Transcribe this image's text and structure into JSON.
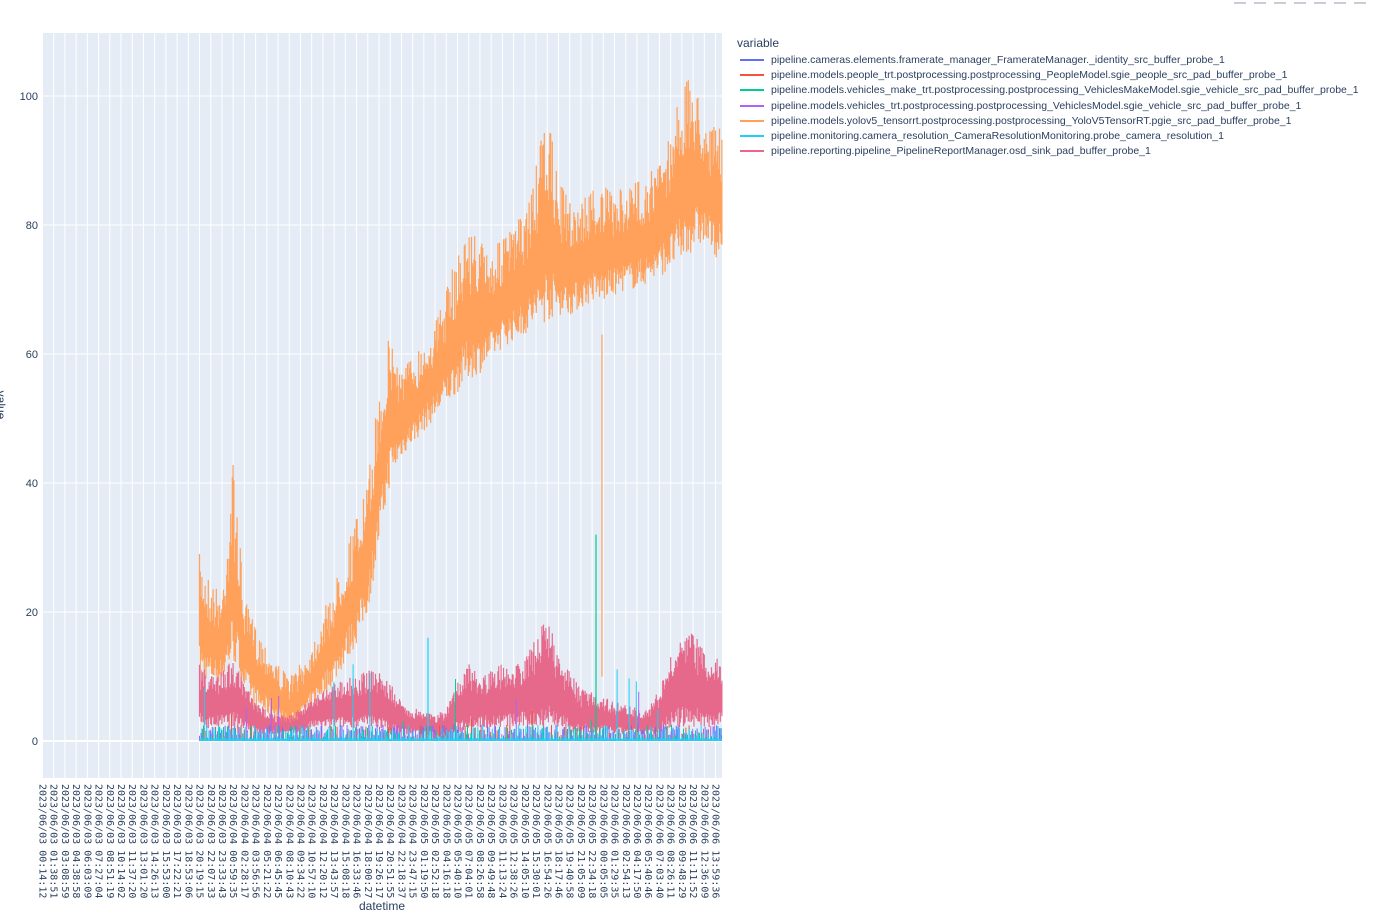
{
  "chart_data": {
    "type": "line",
    "title": "",
    "xlabel": "datetime",
    "ylabel": "value",
    "ylim": [
      -6,
      110
    ],
    "yticks": [
      0,
      20,
      40,
      60,
      80,
      100
    ],
    "grid": true,
    "legend_position": "right",
    "legend_title": "variable",
    "x_tick_labels": [
      "2023/06/03 00:14:12",
      "2023/06/03 01:38:51",
      "2023/06/03 03:08:59",
      "2023/06/03 04:38:58",
      "2023/06/03 06:03:09",
      "2023/06/03 07:27:04",
      "2023/06/03 08:51:19",
      "2023/06/03 10:14:02",
      "2023/06/03 11:37:20",
      "2023/06/03 13:01:20",
      "2023/06/03 14:26:13",
      "2023/06/03 15:53:00",
      "2023/06/03 17:22:21",
      "2023/06/03 18:53:06",
      "2023/06/03 20:19:15",
      "2023/06/03 22:07:33",
      "2023/06/03 23:33:43",
      "2023/06/04 00:59:35",
      "2023/06/04 02:28:17",
      "2023/06/04 03:56:56",
      "2023/06/04 05:21:22",
      "2023/06/04 06:45:45",
      "2023/06/04 08:10:43",
      "2023/06/04 09:34:22",
      "2023/06/04 10:57:10",
      "2023/06/04 12:20:12",
      "2023/06/04 13:43:57",
      "2023/06/04 15:08:18",
      "2023/06/04 16:33:46",
      "2023/06/04 18:00:27",
      "2023/06/04 19:26:17",
      "2023/06/04 20:51:55",
      "2023/06/04 22:18:37",
      "2023/06/04 23:47:15",
      "2023/06/05 01:19:50",
      "2023/06/05 02:52:18",
      "2023/06/05 04:16:18",
      "2023/06/05 05:40:10",
      "2023/06/05 07:04:01",
      "2023/06/05 08:26:58",
      "2023/06/05 09:49:48",
      "2023/06/05 11:13:24",
      "2023/06/05 12:38:26",
      "2023/06/05 14:05:10",
      "2023/06/05 15:30:01",
      "2023/06/05 16:54:26",
      "2023/06/05 18:17:46",
      "2023/06/05 19:40:58",
      "2023/06/05 21:05:09",
      "2023/06/05 22:34:18",
      "2023/06/06 00:05:05",
      "2023/06/06 01:29:35",
      "2023/06/06 02:54:13",
      "2023/06/06 04:17:50",
      "2023/06/06 05:40:46",
      "2023/06/06 07:03:40",
      "2023/06/06 08:26:11",
      "2023/06/06 09:48:29",
      "2023/06/06 11:11:52",
      "2023/06/06 12:36:09",
      "2023/06/06 13:59:36"
    ],
    "data_start_tick_index": 14,
    "series": [
      {
        "name": "pipeline.cameras.elements.framerate_manager_FramerateManager._identity_src_buffer_probe_1",
        "color": "#636efa",
        "approx_range": [
          0,
          3
        ]
      },
      {
        "name": "pipeline.models.people_trt.postprocessing.postprocessing_PeopleModel.sgie_people_src_pad_buffer_probe_1",
        "color": "#ef553b",
        "approx_range": [
          0,
          5
        ]
      },
      {
        "name": "pipeline.models.vehicles_make_trt.postprocessing.postprocessing_VehiclesMakeModel.sgie_vehicle_src_pad_buffer_probe_1",
        "color": "#00cc96",
        "approx_range": [
          0,
          32
        ]
      },
      {
        "name": "pipeline.models.vehicles_trt.postprocessing.postprocessing_VehiclesModel.sgie_vehicle_src_pad_buffer_probe_1",
        "color": "#ab63fa",
        "approx_range": [
          0,
          10
        ]
      },
      {
        "name": "pipeline.models.yolov5_tensorrt.postprocessing.postprocessing_YoloV5TensorRT.pgie_src_pad_buffer_probe_1",
        "color": "#ffa15a",
        "envelope_x_tick": [
          14,
          15,
          16,
          17,
          18,
          19,
          20,
          21,
          22,
          23,
          24,
          25,
          26,
          27,
          28,
          29,
          30,
          31,
          32,
          33,
          34,
          35,
          36,
          37,
          38,
          39,
          40,
          41,
          42,
          43,
          44,
          45,
          46,
          47,
          48,
          49,
          50,
          51,
          52,
          53,
          54,
          55,
          56,
          57,
          58,
          59,
          60
        ],
        "envelope_low": [
          10,
          9,
          9,
          12,
          8,
          5,
          4,
          3,
          2,
          3,
          5,
          7,
          9,
          12,
          15,
          20,
          30,
          40,
          44,
          46,
          48,
          50,
          52,
          54,
          56,
          57,
          59,
          61,
          62,
          63,
          64,
          65,
          66,
          66,
          67,
          68,
          68,
          69,
          70,
          70,
          71,
          72,
          73,
          74,
          76,
          77,
          75
        ],
        "envelope_high": [
          29,
          25,
          23,
          44,
          22,
          18,
          15,
          12,
          10,
          12,
          15,
          20,
          24,
          30,
          35,
          40,
          55,
          64,
          58,
          60,
          62,
          65,
          70,
          76,
          80,
          78,
          76,
          78,
          80,
          82,
          89,
          98,
          87,
          84,
          84,
          86,
          86,
          85,
          86,
          87,
          88,
          90,
          95,
          102,
          103,
          98,
          95
        ]
      },
      {
        "name": "pipeline.monitoring.camera_resolution_CameraResolutionMonitoring.probe_camera_resolution_1",
        "color": "#19d3f3",
        "approx_range": [
          0,
          16
        ]
      },
      {
        "name": "pipeline.reporting.pipeline_PipelineReportManager.osd_sink_pad_buffer_probe_1",
        "color": "#e6698c",
        "envelope_x_tick": [
          14,
          15,
          16,
          17,
          18,
          19,
          20,
          21,
          22,
          23,
          24,
          25,
          26,
          27,
          28,
          29,
          30,
          31,
          32,
          33,
          34,
          35,
          36,
          37,
          38,
          39,
          40,
          41,
          42,
          43,
          44,
          45,
          46,
          47,
          48,
          49,
          50,
          51,
          52,
          53,
          54,
          55,
          56,
          57,
          58,
          59,
          60
        ],
        "envelope_low": [
          2,
          2,
          2,
          2,
          2,
          1,
          1,
          1,
          1,
          1,
          2,
          2,
          2,
          2,
          2,
          2,
          2,
          1,
          1,
          1,
          1,
          0.5,
          0.5,
          1,
          2,
          2,
          2,
          2,
          2,
          2,
          2,
          2,
          2,
          1,
          1,
          1,
          1,
          1,
          1,
          1,
          1,
          1,
          2,
          2,
          2,
          2,
          2
        ],
        "envelope_high": [
          12,
          10,
          11,
          13,
          9,
          6,
          5,
          4,
          4,
          5,
          7,
          8,
          9,
          10,
          10,
          11,
          11,
          9,
          6,
          5,
          5,
          4,
          5,
          10,
          12,
          10,
          11,
          12,
          12,
          13,
          16,
          20,
          13,
          11,
          8,
          8,
          7,
          6,
          6,
          5,
          5,
          8,
          13,
          16,
          17,
          14,
          13
        ]
      }
    ]
  },
  "legend": {
    "title": "variable",
    "items": [
      {
        "label": "pipeline.cameras.elements.framerate_manager_FramerateManager._identity_src_buffer_probe_1",
        "color": "#636efa"
      },
      {
        "label": "pipeline.models.people_trt.postprocessing.postprocessing_PeopleModel.sgie_people_src_pad_buffer_probe_1",
        "color": "#ef553b"
      },
      {
        "label": "pipeline.models.vehicles_make_trt.postprocessing.postprocessing_VehiclesMakeModel.sgie_vehicle_src_pad_buffer_probe_1",
        "color": "#00cc96"
      },
      {
        "label": "pipeline.models.vehicles_trt.postprocessing.postprocessing_VehiclesModel.sgie_vehicle_src_pad_buffer_probe_1",
        "color": "#ab63fa"
      },
      {
        "label": "pipeline.models.yolov5_tensorrt.postprocessing.postprocessing_YoloV5TensorRT.pgie_src_pad_buffer_probe_1",
        "color": "#ffa15a"
      },
      {
        "label": "pipeline.monitoring.camera_resolution_CameraResolutionMonitoring.probe_camera_resolution_1",
        "color": "#19d3f3"
      },
      {
        "label": "pipeline.reporting.pipeline_PipelineReportManager.osd_sink_pad_buffer_probe_1",
        "color": "#e6698c"
      }
    ]
  },
  "axes": {
    "x_title": "datetime",
    "y_title": "value",
    "y_tick_labels": [
      "0",
      "20",
      "40",
      "60",
      "80",
      "100"
    ]
  },
  "colors": {
    "plot_bg": "#e5ecf6",
    "grid": "#ffffff",
    "text": "#2a3f5f"
  }
}
